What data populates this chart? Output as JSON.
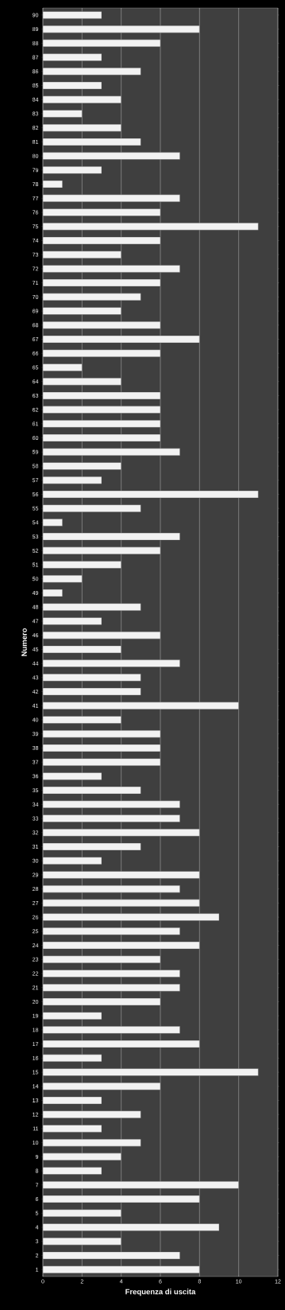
{
  "chart_data": {
    "type": "bar",
    "orientation": "horizontal",
    "xlabel": "Frequenza di uscita",
    "ylabel": "Numero",
    "categories": [
      "90",
      "89",
      "88",
      "87",
      "86",
      "85",
      "84",
      "83",
      "82",
      "81",
      "80",
      "79",
      "78",
      "77",
      "76",
      "75",
      "74",
      "73",
      "72",
      "71",
      "70",
      "69",
      "68",
      "67",
      "66",
      "65",
      "64",
      "63",
      "62",
      "61",
      "60",
      "59",
      "58",
      "57",
      "56",
      "55",
      "54",
      "53",
      "52",
      "51",
      "50",
      "49",
      "48",
      "47",
      "46",
      "45",
      "44",
      "43",
      "42",
      "41",
      "40",
      "39",
      "38",
      "37",
      "36",
      "35",
      "34",
      "33",
      "32",
      "31",
      "30",
      "29",
      "28",
      "27",
      "26",
      "25",
      "24",
      "23",
      "22",
      "21",
      "20",
      "19",
      "18",
      "17",
      "16",
      "15",
      "14",
      "13",
      "12",
      "11",
      "10",
      "9",
      "8",
      "7",
      "6",
      "5",
      "4",
      "3",
      "2",
      "1"
    ],
    "values": [
      3,
      8,
      6,
      3,
      5,
      3,
      4,
      2,
      4,
      5,
      7,
      3,
      1,
      7,
      6,
      11,
      6,
      4,
      7,
      6,
      5,
      4,
      6,
      8,
      6,
      2,
      4,
      6,
      6,
      6,
      6,
      7,
      4,
      3,
      11,
      5,
      1,
      7,
      6,
      4,
      2,
      1,
      5,
      3,
      6,
      4,
      7,
      5,
      5,
      10,
      4,
      6,
      6,
      6,
      3,
      5,
      7,
      7,
      8,
      5,
      3,
      8,
      7,
      8,
      9,
      7,
      8,
      6,
      7,
      7,
      6,
      3,
      7,
      8,
      3,
      11,
      6,
      3,
      5,
      3,
      5,
      4,
      3,
      10,
      8,
      4,
      9,
      4,
      7,
      8
    ],
    "color": "#f2f2f2",
    "xlim": [
      0,
      12
    ],
    "xticks": [
      0,
      2,
      4,
      6,
      8,
      10,
      12
    ],
    "grid": "x"
  }
}
